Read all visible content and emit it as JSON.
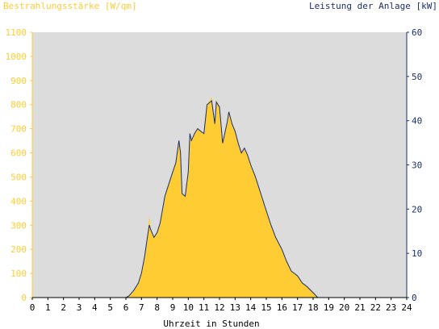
{
  "chart_data": {
    "type": "area",
    "left_axis_title": "Bestrahlungsstärke [W/qm]",
    "right_axis_title": "Leistung der Anlage [kW]",
    "xlabel": "Uhrzeit in Stunden",
    "x_ticks": [
      "0",
      "1",
      "2",
      "3",
      "4",
      "5",
      "6",
      "7",
      "8",
      "9",
      "10",
      "11",
      "12",
      "13",
      "14",
      "15",
      "16",
      "17",
      "18",
      "19",
      "20",
      "21",
      "22",
      "23",
      "24"
    ],
    "y_left_ticks": [
      "0",
      "100",
      "200",
      "300",
      "400",
      "500",
      "600",
      "700",
      "800",
      "900",
      "1000",
      "1100"
    ],
    "y_right_ticks": [
      "0",
      "10",
      "20",
      "30",
      "40",
      "50",
      "60"
    ],
    "xlim": [
      0,
      24
    ],
    "ylim_left": [
      0,
      1100
    ],
    "ylim_right": [
      0,
      60
    ],
    "grid": false,
    "colors": {
      "plot_bg": "#dcdcdc",
      "irradiance_fill": "#ffcc33",
      "power_line": "#1a2f6e",
      "left_axis_text": "#ffcc33",
      "right_axis_text": "#1a2f6e",
      "x_axis_text": "#000000"
    },
    "series": [
      {
        "unit": "W/qm",
        "axis": "left",
        "style": "filled-area",
        "x": [
          0,
          6,
          6.2,
          6.5,
          6.8,
          7.0,
          7.2,
          7.4,
          7.5,
          7.6,
          7.8,
          8.0,
          8.2,
          8.5,
          8.8,
          9.0,
          9.2,
          9.4,
          9.5,
          9.6,
          9.8,
          10.0,
          10.1,
          10.2,
          10.4,
          10.6,
          10.8,
          11.0,
          11.2,
          11.5,
          11.7,
          11.8,
          12.0,
          12.2,
          12.5,
          12.6,
          12.8,
          13.0,
          13.2,
          13.4,
          13.6,
          13.8,
          14.0,
          14.3,
          14.6,
          15.0,
          15.3,
          15.6,
          16.0,
          16.3,
          16.6,
          17.0,
          17.3,
          17.6,
          18.0,
          18.3,
          18.5,
          24
        ],
        "values": [
          0,
          0,
          8,
          30,
          60,
          100,
          170,
          260,
          340,
          280,
          250,
          270,
          310,
          420,
          480,
          520,
          560,
          650,
          600,
          430,
          420,
          520,
          680,
          650,
          680,
          700,
          690,
          680,
          800,
          830,
          720,
          820,
          790,
          640,
          730,
          770,
          720,
          690,
          640,
          600,
          620,
          590,
          550,
          500,
          440,
          360,
          300,
          250,
          200,
          150,
          110,
          90,
          60,
          45,
          20,
          0,
          0,
          0
        ]
      },
      {
        "unit": "kW",
        "axis": "right",
        "style": "line",
        "x": [
          0,
          6,
          6.2,
          6.5,
          6.8,
          7.0,
          7.2,
          7.4,
          7.5,
          7.6,
          7.8,
          8.0,
          8.2,
          8.5,
          8.8,
          9.0,
          9.2,
          9.4,
          9.5,
          9.6,
          9.8,
          10.0,
          10.1,
          10.2,
          10.4,
          10.6,
          10.8,
          11.0,
          11.2,
          11.5,
          11.7,
          11.8,
          12.0,
          12.2,
          12.5,
          12.6,
          12.8,
          13.0,
          13.2,
          13.4,
          13.6,
          13.8,
          14.0,
          14.3,
          14.6,
          15.0,
          15.3,
          15.6,
          16.0,
          16.3,
          16.6,
          17.0,
          17.3,
          17.6,
          18.0,
          18.3,
          18.5,
          24
        ],
        "values": [
          0,
          0,
          0.4,
          1.6,
          3.3,
          5.5,
          9.3,
          14.2,
          16.4,
          15.3,
          13.6,
          14.7,
          16.9,
          22.9,
          26.2,
          28.4,
          30.5,
          35.5,
          32.7,
          23.5,
          22.9,
          28.4,
          37.1,
          35.5,
          37.1,
          38.2,
          37.6,
          37.1,
          43.6,
          44.5,
          39.3,
          44.2,
          43.1,
          34.9,
          39.8,
          42.0,
          39.3,
          37.6,
          34.9,
          32.7,
          33.8,
          32.2,
          30.0,
          27.3,
          24.0,
          19.6,
          16.4,
          13.6,
          10.9,
          8.2,
          6.0,
          4.9,
          3.3,
          2.5,
          1.1,
          0,
          0,
          0
        ]
      }
    ]
  }
}
